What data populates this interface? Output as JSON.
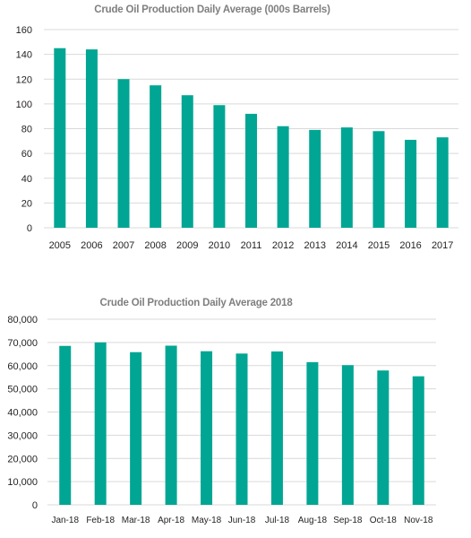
{
  "chart_data": [
    {
      "type": "bar",
      "title": "Crude Oil Production Daily Average (000s Barrels)",
      "categories": [
        "2005",
        "2006",
        "2007",
        "2008",
        "2009",
        "2010",
        "2011",
        "2012",
        "2013",
        "2014",
        "2015",
        "2016",
        "2017"
      ],
      "values": [
        145,
        144,
        120,
        115,
        107,
        99,
        92,
        82,
        79,
        81,
        78,
        71,
        73
      ],
      "ylim": [
        0,
        160
      ],
      "yticks": [
        0,
        20,
        40,
        60,
        80,
        100,
        120,
        140,
        160
      ],
      "ytick_labels": [
        "0",
        "20",
        "40",
        "60",
        "80",
        "100",
        "120",
        "140",
        "160"
      ],
      "grid": true,
      "bar_color": "#00A693",
      "grid_color": "#D9D9D9"
    },
    {
      "type": "bar",
      "title": "Crude Oil Production Daily Average 2018",
      "categories": [
        "Jan-18",
        "Feb-18",
        "Mar-18",
        "Apr-18",
        "May-18",
        "Jun-18",
        "Jul-18",
        "Aug-18",
        "Sep-18",
        "Oct-18",
        "Nov-18"
      ],
      "values": [
        68500,
        70000,
        65800,
        68600,
        66200,
        65200,
        66100,
        61500,
        60200,
        57900,
        55400
      ],
      "ylim": [
        0,
        80000
      ],
      "yticks": [
        0,
        10000,
        20000,
        30000,
        40000,
        50000,
        60000,
        70000,
        80000
      ],
      "ytick_labels": [
        "0",
        "10,000",
        "20,000",
        "30,000",
        "40,000",
        "50,000",
        "60,000",
        "70,000",
        "80,000"
      ],
      "grid": true,
      "bar_color": "#00A693",
      "grid_color": "#D9D9D9"
    }
  ]
}
